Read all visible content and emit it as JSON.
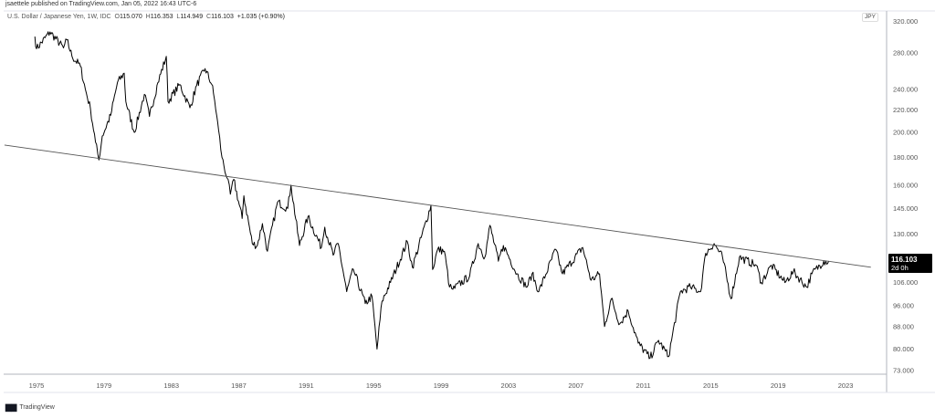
{
  "publisher": "jsaettele published on TradingView.com, Jan 05, 2022 16:43 UTC-6",
  "legend": {
    "symbol": "U.S. Dollar / Japanese Yen, 1W, IDC",
    "open_label": "O",
    "open": "115.070",
    "high_label": "H",
    "high": "116.353",
    "low_label": "L",
    "low": "114.949",
    "close_label": "C",
    "close": "116.103",
    "change": "+1.035 (+0.90%)"
  },
  "currency_badge": "JPY",
  "last_price": {
    "value": "116.103",
    "countdown": "2d 0h"
  },
  "footer": {
    "logo": "17",
    "brand": "TradingView"
  },
  "colors": {
    "line": "#000000",
    "trendline": "#555555",
    "axis": "#b2b5be",
    "price_label_bg": "#000000"
  },
  "chart_data": {
    "type": "line",
    "title": "U.S. Dollar / Japanese Yen, 1W, IDC",
    "xlabel": "",
    "ylabel": "",
    "y_scale": "log",
    "xlim": [
      1973,
      2026
    ],
    "ylim": [
      72,
      330
    ],
    "grid": false,
    "x_ticks": [
      "1975",
      "1979",
      "1983",
      "1987",
      "1991",
      "1995",
      "1999",
      "2003",
      "2007",
      "2011",
      "2015",
      "2019",
      "2023"
    ],
    "y_ticks": [
      "320.000",
      "280.000",
      "240.000",
      "220.000",
      "200.000",
      "180.000",
      "160.000",
      "145.000",
      "130.000",
      "106.000",
      "96.000",
      "88.000",
      "80.000",
      "73.000"
    ],
    "series": [
      {
        "x": [
          1974.9,
          1975.0,
          1975.8,
          1976.6,
          1976.8,
          1977.1,
          1977.6,
          1977.9,
          1978.2,
          1978.5,
          1978.7,
          1978.9,
          1979.4,
          1979.8,
          1980.2,
          1980.3,
          1980.8,
          1981.4,
          1981.7,
          1982.2,
          1982.7,
          1982.8,
          1983.5,
          1984.1,
          1984.5,
          1985.0,
          1985.4,
          1985.5,
          1985.7,
          1985.8,
          1986.0,
          1986.3,
          1986.5,
          1986.7,
          1987.2,
          1987.3,
          1987.8,
          1988.1,
          1988.4,
          1988.7,
          1989.3,
          1989.9,
          1990.1,
          1990.6,
          1991.1,
          1991.9,
          1992.1,
          1992.6,
          1992.9,
          1993.4,
          1993.8,
          1994.5,
          1994.9,
          1995.2,
          1995.5,
          1996.0,
          1997.0,
          1997.3,
          1998.4,
          1998.5,
          1998.8,
          1999.2,
          1999.5,
          1999.7,
          2000.7,
          2001.2,
          2001.6,
          2001.9,
          2002.4,
          2002.7,
          2003.5,
          2004.1,
          2004.4,
          2004.8,
          2005.8,
          2006.2,
          2007.4,
          2007.9,
          2008.4,
          2008.7,
          2009.1,
          2009.6,
          2010.1,
          2010.7,
          2011.4,
          2011.9,
          2012.5,
          2013.2,
          2013.8,
          2014.4,
          2014.7,
          2015.2,
          2015.7,
          2016.2,
          2016.7,
          2017.7,
          2018.0,
          2018.6,
          2019.4,
          2019.9,
          2020.7,
          2021.0,
          2021.7,
          2022.0
        ],
        "y": [
          300,
          285,
          306,
          286,
          296,
          276,
          265,
          240,
          221,
          192,
          178,
          197,
          215,
          247,
          257,
          228,
          200,
          235,
          214,
          247,
          276,
          228,
          245,
          222,
          244,
          262,
          245,
          236,
          214,
          202,
          180,
          165,
          154,
          164,
          139,
          153,
          125,
          124,
          136,
          121,
          149,
          145,
          160,
          124,
          140,
          123,
          134,
          119,
          125,
          102,
          112,
          97,
          100,
          80,
          98,
          106,
          126,
          113,
          147,
          112,
          122,
          121,
          104,
          103,
          109,
          125,
          118,
          135,
          116,
          124,
          110,
          104,
          110,
          102,
          122,
          110,
          123,
          107,
          110,
          88,
          99,
          89,
          94,
          82,
          77,
          83,
          77.5,
          102,
          104,
          102,
          120,
          125,
          118,
          99,
          118,
          114,
          106,
          114,
          106,
          111,
          104,
          110,
          116,
          116.103
        ]
      }
    ],
    "trendline": {
      "x": [
        1973.1,
        2024.5
      ],
      "y": [
        189.6,
        113.1
      ]
    },
    "last_value": 116.103
  }
}
